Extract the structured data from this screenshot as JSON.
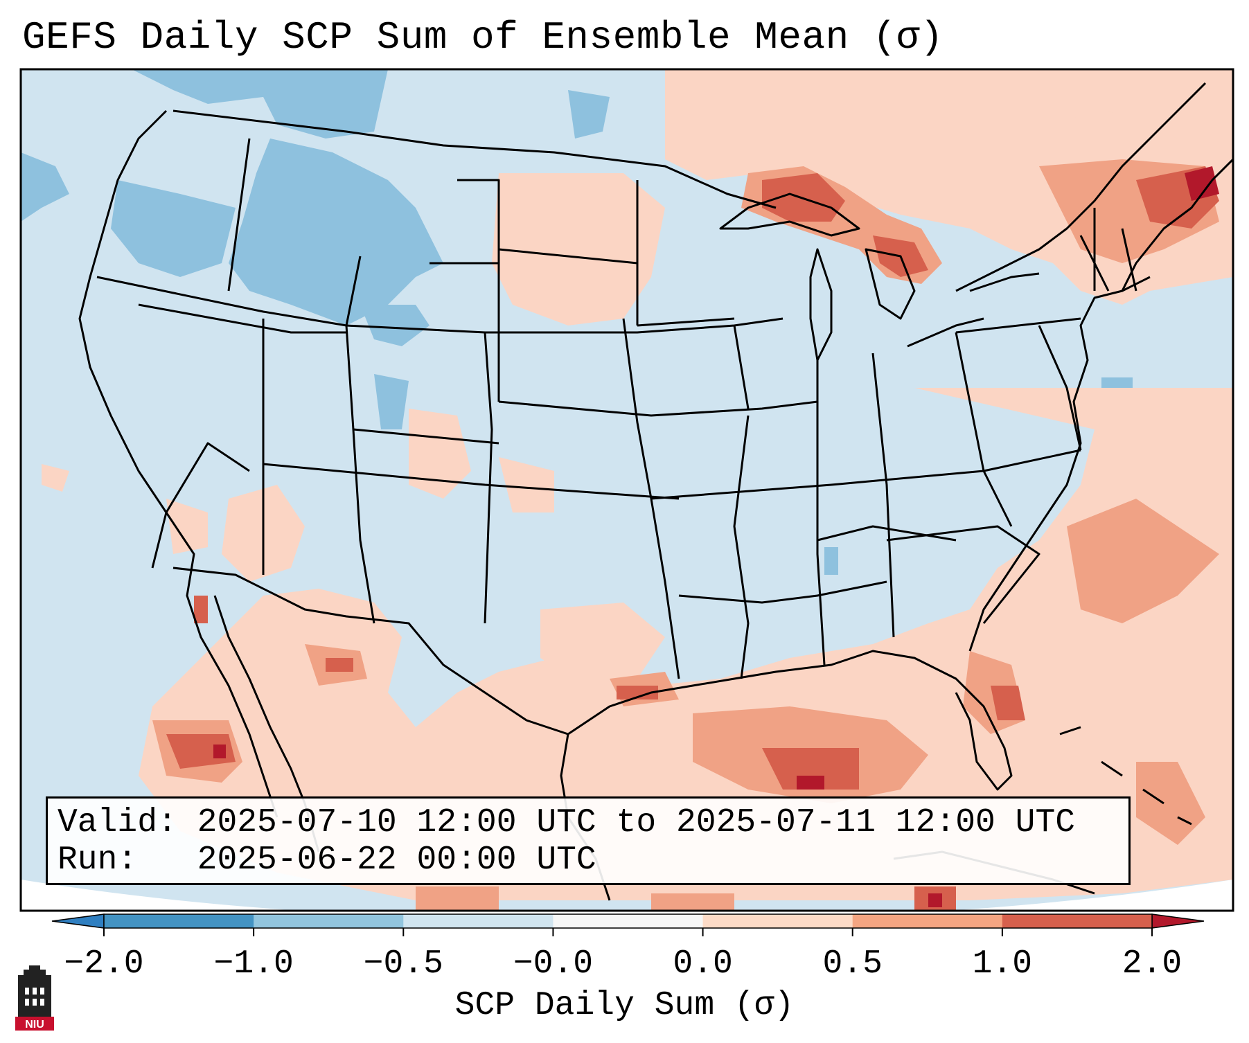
{
  "title": "GEFS Daily SCP Sum of Ensemble Mean (σ)",
  "info": {
    "valid_label": "Valid:",
    "valid_value": "2025-07-10 12:00 UTC to 2025-07-11 12:00 UTC",
    "run_label": "Run:",
    "run_value": "2025-06-22 00:00 UTC"
  },
  "colorbar": {
    "label": "SCP Daily Sum (σ)",
    "ticks": [
      "−2.0",
      "−1.0",
      "−0.5",
      "−0.0",
      "0.0",
      "0.5",
      "1.0",
      "2.0"
    ],
    "colors": [
      "#2f7fc1",
      "#8ec1de",
      "#d0e4f0",
      "#f7f7f7",
      "#fbd5c4",
      "#f0a285",
      "#d6604d",
      "#b2182b"
    ]
  },
  "logo": {
    "text": "NIU"
  },
  "colors": {
    "ocean_light_blue": "#d0e4f0",
    "light_blue": "#8ec1de",
    "light_red": "#fbd5c4",
    "mid_red": "#f0a285",
    "red": "#d6604d",
    "dark_red": "#b2182b"
  }
}
